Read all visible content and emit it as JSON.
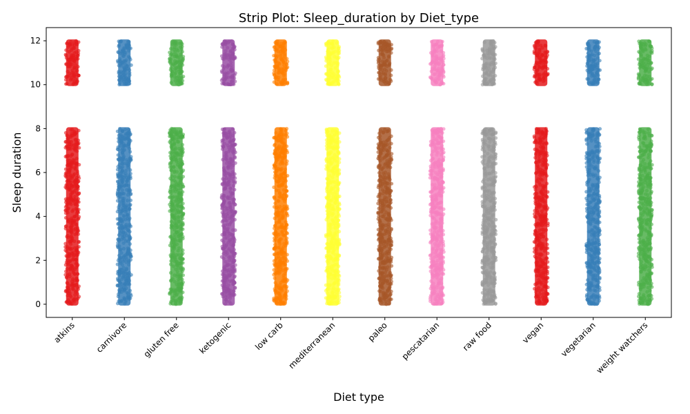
{
  "chart_data": {
    "type": "scatter",
    "subtype": "strip",
    "title": "Strip Plot: Sleep_duration by Diet_type",
    "xlabel": "Diet type",
    "ylabel": "Sleep duration",
    "categories": [
      "atkins",
      "carnivore",
      "gluten free",
      "ketogenic",
      "low carb",
      "mediterranean",
      "paleo",
      "pescatarian",
      "raw food",
      "vegan",
      "vegetarian",
      "weight watchers"
    ],
    "colors": [
      "#e41a1c",
      "#377eb8",
      "#4daf4a",
      "#984ea3",
      "#ff7f00",
      "#ffff33",
      "#a65628",
      "#f781bf",
      "#999999",
      "#e41a1c",
      "#377eb8",
      "#4daf4a"
    ],
    "value_ranges": [
      {
        "min": 0,
        "max": 8
      },
      {
        "min": 10,
        "max": 12
      }
    ],
    "ylim": [
      -0.6,
      12.6
    ],
    "yticks": [
      0,
      2,
      4,
      6,
      8,
      10,
      12
    ],
    "grid": false,
    "legend": "none"
  }
}
